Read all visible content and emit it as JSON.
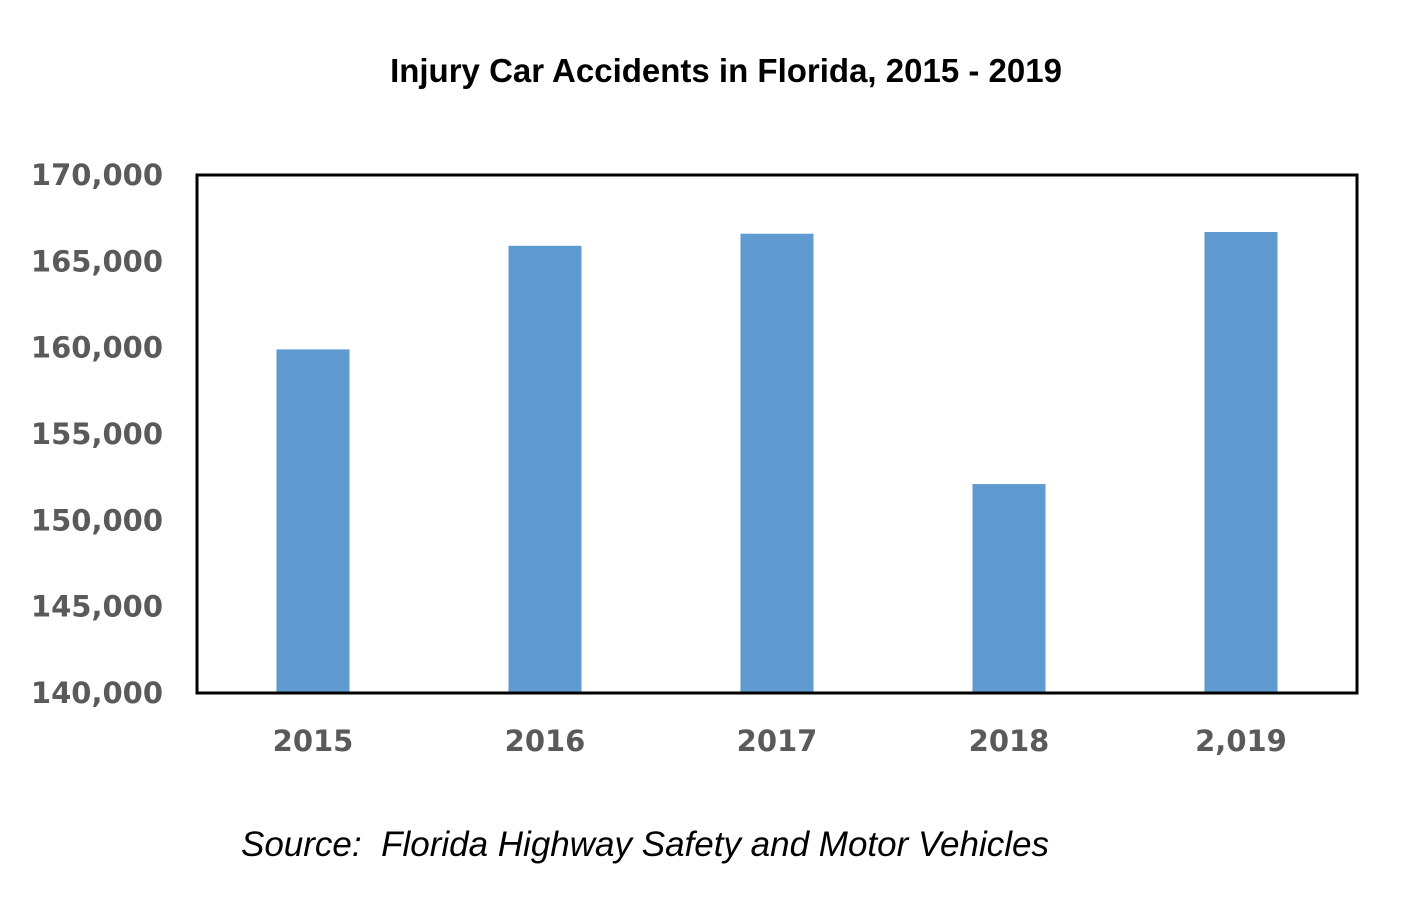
{
  "chart_data": {
    "type": "bar",
    "title": "Injury Car Accidents in Florida, 2015 - 2019",
    "categories": [
      "2015",
      "2016",
      "2017",
      "2018",
      "2,019"
    ],
    "values": [
      159900,
      165900,
      166600,
      152100,
      166700
    ],
    "ylim": [
      140000,
      170000
    ],
    "yticks": [
      140000,
      145000,
      150000,
      155000,
      160000,
      165000,
      170000
    ],
    "ytick_labels": [
      "140,000",
      "145,000",
      "150,000",
      "155,000",
      "160,000",
      "165,000",
      "170,000"
    ],
    "xlabel": "",
    "ylabel": "",
    "grid": false,
    "legend": "none",
    "bar_color": "#5f9bd1",
    "source": "Source:  Florida Highway Safety and Motor Vehicles"
  }
}
